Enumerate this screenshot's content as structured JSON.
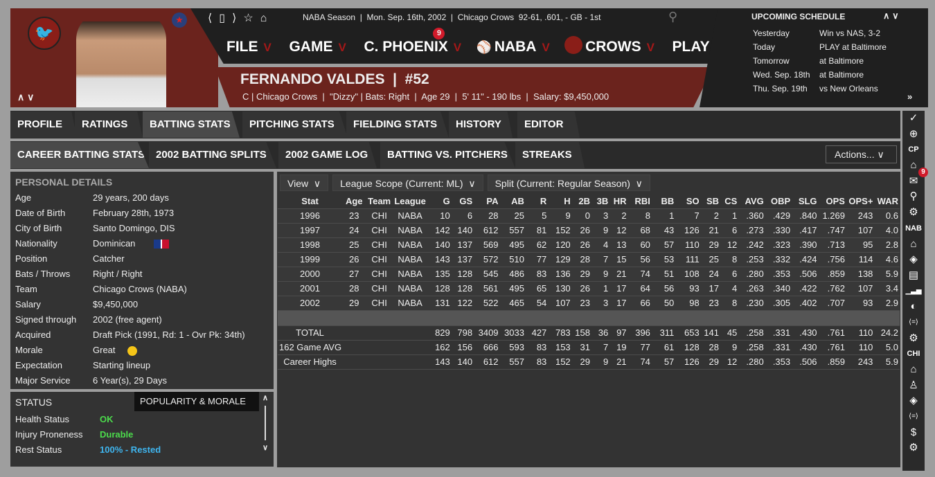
{
  "header": {
    "nav_icons": [
      "back-icon",
      "bookmark-icon",
      "forward-icon",
      "star-icon",
      "home-icon"
    ],
    "season_info": "NABA Season  |  Mon. Sep. 16th, 2002  |  Chicago Crows  92-61, .601, - GB - 1st",
    "menu": [
      {
        "label": "FILE"
      },
      {
        "label": "GAME"
      },
      {
        "label": "C. PHOENIX",
        "badge": "9"
      },
      {
        "label": "NABA"
      },
      {
        "label": "CROWS"
      },
      {
        "label": "PLAY"
      }
    ],
    "player_name": "FERNANDO VALDES  |  #52",
    "player_info": "C | Chicago Crows  |  \"Dizzy\" | Bats: Right  |  Age 29  |  5' 11\" - 190 lbs  |  Salary: $9,450,000",
    "player_arrows": "ʌ ʌ"
  },
  "schedule": {
    "title": "UPCOMING SCHEDULE",
    "rows": [
      {
        "day": "Yesterday",
        "event": "Win vs NAS, 3-2"
      },
      {
        "day": "Today",
        "event": "PLAY at Baltimore"
      },
      {
        "day": "Tomorrow",
        "event": "at Baltimore"
      },
      {
        "day": "Wed. Sep. 18th",
        "event": "at Baltimore"
      },
      {
        "day": "Thu. Sep. 19th",
        "event": "vs New Orleans"
      }
    ]
  },
  "tabs": [
    "PROFILE",
    "RATINGS",
    "BATTING STATS",
    "PITCHING STATS",
    "FIELDING STATS",
    "HISTORY",
    "EDITOR"
  ],
  "subtabs": [
    "CAREER BATTING STATS",
    "2002 BATTING SPLITS",
    "2002 GAME LOG",
    "BATTING VS. PITCHERS",
    "STREAKS"
  ],
  "actions_label": "Actions...",
  "personal": {
    "title": "PERSONAL DETAILS",
    "rows": [
      {
        "k": "Age",
        "v": "29 years, 200 days"
      },
      {
        "k": "Date of Birth",
        "v": "February 28th, 1973"
      },
      {
        "k": "City of Birth",
        "v": "Santo Domingo, DIS"
      },
      {
        "k": "Nationality",
        "v": "Dominican"
      },
      {
        "k": "Position",
        "v": "Catcher"
      },
      {
        "k": "Bats / Throws",
        "v": "Right / Right"
      },
      {
        "k": "Team",
        "v": "Chicago Crows (NABA)"
      },
      {
        "k": "Salary",
        "v": "$9,450,000"
      },
      {
        "k": "Signed through",
        "v": "2002 (free agent)"
      },
      {
        "k": "Acquired",
        "v": "Draft Pick (1991, Rd: 1 - Ovr Pk: 34th)"
      },
      {
        "k": "Morale",
        "v": "Great"
      },
      {
        "k": "Expectation",
        "v": "Starting lineup"
      },
      {
        "k": "Major Service",
        "v": "6 Year(s), 29 Days"
      }
    ]
  },
  "status": {
    "title": "STATUS",
    "tab2": "POPULARITY & MORALE",
    "rows": [
      {
        "k": "Health Status",
        "v": "OK",
        "color": "#4cdc4c"
      },
      {
        "k": "Injury Proneness",
        "v": "Durable",
        "color": "#4cdc4c"
      },
      {
        "k": "Rest Status",
        "v": "100% - Rested",
        "color": "#3fb6f0"
      }
    ]
  },
  "filters": [
    "View",
    "League Scope (Current: ML)",
    "Split (Current: Regular Season)"
  ],
  "stats": {
    "columns": [
      "Stat",
      "Age",
      "Team",
      "League",
      "G",
      "GS",
      "PA",
      "AB",
      "R",
      "H",
      "2B",
      "3B",
      "HR",
      "RBI",
      "BB",
      "SO",
      "SB",
      "CS",
      "AVG",
      "OBP",
      "SLG",
      "OPS",
      "OPS+",
      "WAR"
    ],
    "rows": [
      [
        "1996",
        "23",
        "CHI",
        "NABA",
        "10",
        "6",
        "28",
        "25",
        "5",
        "9",
        "0",
        "3",
        "2",
        "8",
        "1",
        "7",
        "2",
        "1",
        ".360",
        ".429",
        ".840",
        "1.269",
        "243",
        "0.6"
      ],
      [
        "1997",
        "24",
        "CHI",
        "NABA",
        "142",
        "140",
        "612",
        "557",
        "81",
        "152",
        "26",
        "9",
        "12",
        "68",
        "43",
        "126",
        "21",
        "6",
        ".273",
        ".330",
        ".417",
        ".747",
        "107",
        "4.0"
      ],
      [
        "1998",
        "25",
        "CHI",
        "NABA",
        "140",
        "137",
        "569",
        "495",
        "62",
        "120",
        "26",
        "4",
        "13",
        "60",
        "57",
        "110",
        "29",
        "12",
        ".242",
        ".323",
        ".390",
        ".713",
        "95",
        "2.8"
      ],
      [
        "1999",
        "26",
        "CHI",
        "NABA",
        "143",
        "137",
        "572",
        "510",
        "77",
        "129",
        "28",
        "7",
        "15",
        "56",
        "53",
        "111",
        "25",
        "8",
        ".253",
        ".332",
        ".424",
        ".756",
        "114",
        "4.6"
      ],
      [
        "2000",
        "27",
        "CHI",
        "NABA",
        "135",
        "128",
        "545",
        "486",
        "83",
        "136",
        "29",
        "9",
        "21",
        "74",
        "51",
        "108",
        "24",
        "6",
        ".280",
        ".353",
        ".506",
        ".859",
        "138",
        "5.9"
      ],
      [
        "2001",
        "28",
        "CHI",
        "NABA",
        "128",
        "128",
        "561",
        "495",
        "65",
        "130",
        "26",
        "1",
        "17",
        "64",
        "56",
        "93",
        "17",
        "4",
        ".263",
        ".340",
        ".422",
        ".762",
        "107",
        "3.4"
      ],
      [
        "2002",
        "29",
        "CHI",
        "NABA",
        "131",
        "122",
        "522",
        "465",
        "54",
        "107",
        "23",
        "3",
        "17",
        "66",
        "50",
        "98",
        "23",
        "8",
        ".230",
        ".305",
        ".402",
        ".707",
        "93",
        "2.9"
      ]
    ],
    "summary": [
      [
        "TOTAL",
        "",
        "",
        "",
        "829",
        "798",
        "3409",
        "3033",
        "427",
        "783",
        "158",
        "36",
        "97",
        "396",
        "311",
        "653",
        "141",
        "45",
        ".258",
        ".331",
        ".430",
        ".761",
        "110",
        "24.2"
      ],
      [
        "162 Game AVG",
        "",
        "",
        "",
        "162",
        "156",
        "666",
        "593",
        "83",
        "153",
        "31",
        "7",
        "19",
        "77",
        "61",
        "128",
        "28",
        "9",
        ".258",
        ".331",
        ".430",
        ".761",
        "110",
        "5.0"
      ],
      [
        "Career Highs",
        "",
        "",
        "",
        "143",
        "140",
        "612",
        "557",
        "83",
        "152",
        "29",
        "9",
        "21",
        "74",
        "57",
        "126",
        "29",
        "12",
        ".280",
        ".353",
        ".506",
        ".859",
        "243",
        "5.9"
      ]
    ]
  },
  "sidebar": [
    {
      "icon": "check-icon",
      "g": "✓"
    },
    {
      "icon": "globe-icon",
      "g": "⊕"
    },
    {
      "label": "CP"
    },
    {
      "icon": "home-icon",
      "g": "⌂"
    },
    {
      "icon": "mail-icon",
      "g": "✉",
      "badge": "9"
    },
    {
      "icon": "search-icon",
      "g": "⚲"
    },
    {
      "icon": "gear-icon",
      "g": "⚙"
    },
    {
      "label": "NAB"
    },
    {
      "icon": "home-icon",
      "g": "⌂"
    },
    {
      "icon": "location-icon",
      "g": "◈"
    },
    {
      "icon": "id-card-icon",
      "g": "▤"
    },
    {
      "icon": "bar-chart-icon",
      "g": "▁▃▅"
    },
    {
      "icon": "baseball-icon",
      "g": "◐"
    },
    {
      "icon": "transaction-icon",
      "g": "⟨=⟩"
    },
    {
      "icon": "gear-icon",
      "g": "⚙"
    },
    {
      "label": "CHI"
    },
    {
      "icon": "home-icon",
      "g": "⌂"
    },
    {
      "icon": "roster-icon",
      "g": "♙"
    },
    {
      "icon": "location-icon",
      "g": "◈"
    },
    {
      "icon": "transaction-icon",
      "g": "⟨=⟩"
    },
    {
      "icon": "dollar-icon",
      "g": "$"
    },
    {
      "icon": "gear-icon",
      "g": "⚙"
    }
  ],
  "colors": {
    "accent_red": "#6b231d",
    "chevron": "#a31818",
    "badge": "#d11a2a"
  }
}
